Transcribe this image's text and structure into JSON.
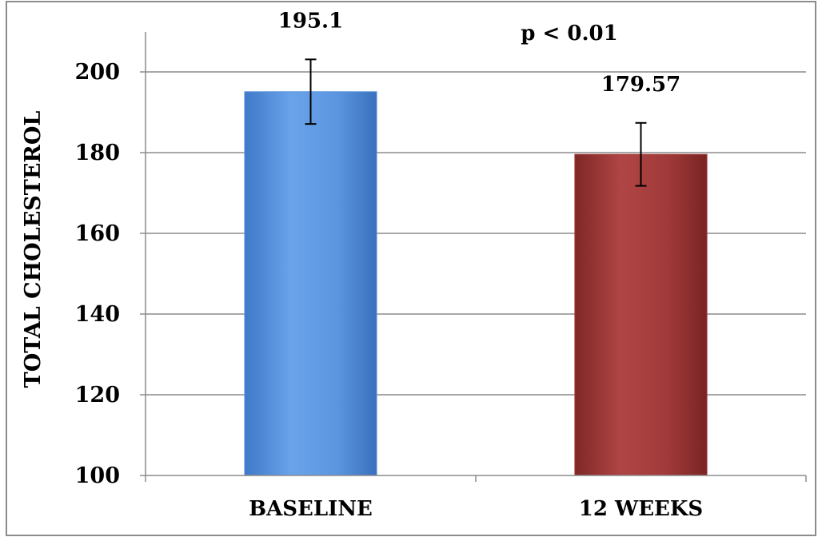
{
  "chart_data": {
    "type": "bar",
    "title": "",
    "xlabel": "",
    "ylabel": "TOTAL CHOLESTEROL",
    "ylim": [
      100,
      200
    ],
    "yticks": [
      100,
      120,
      140,
      160,
      180,
      200
    ],
    "grid": true,
    "legend": "none",
    "categories": [
      "BASELINE",
      "12 WEEKS"
    ],
    "values": [
      195.1,
      179.57
    ],
    "error": [
      8,
      7.8
    ],
    "data_labels": [
      "195.1",
      "179.57"
    ],
    "bar_colors": [
      "#5b96e0",
      "#a13a3a"
    ],
    "annotation": "p < 0.01"
  }
}
